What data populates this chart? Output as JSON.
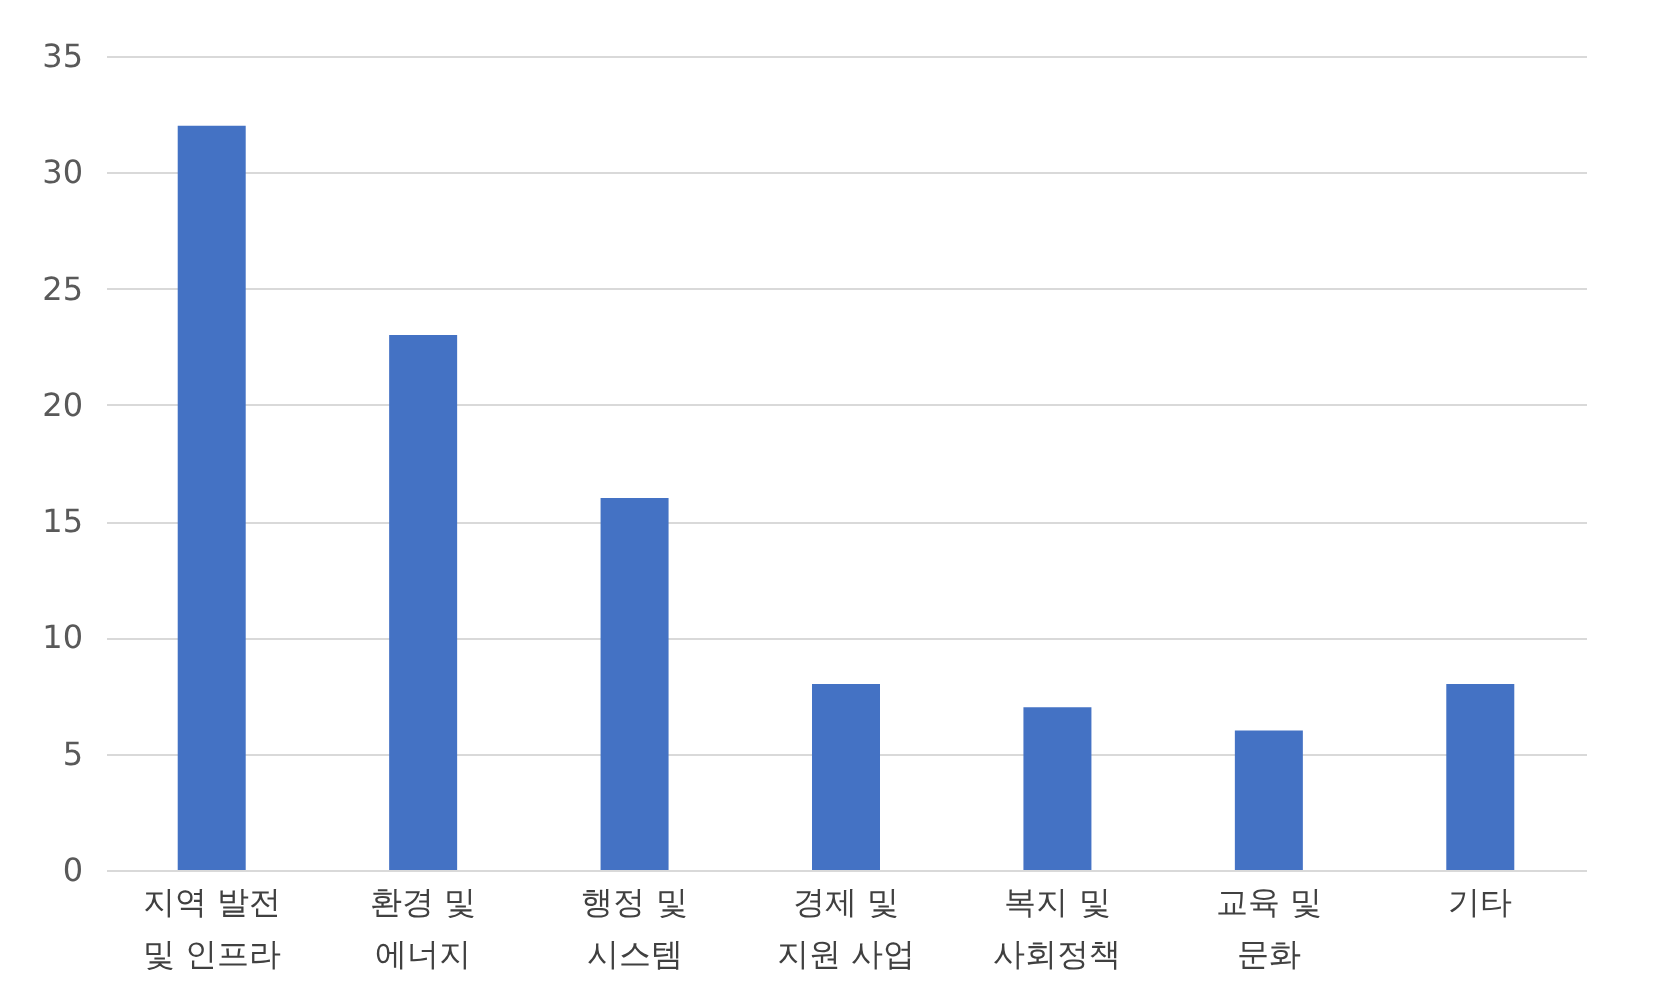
{
  "chart_data": {
    "type": "bar",
    "categories": [
      "지역 발전 및 인프라",
      "환경 및 에너지",
      "행정 및 시스템",
      "경제 및 지원 사업",
      "복지 및 사회정책",
      "교육 및 문화",
      "기타"
    ],
    "values": [
      32,
      23,
      16,
      8,
      7,
      6,
      8
    ],
    "color": "#4472c4",
    "ylim": [
      0,
      35
    ],
    "yticks": [
      0,
      5,
      10,
      15,
      20,
      25,
      30,
      35
    ],
    "grid": "y"
  }
}
